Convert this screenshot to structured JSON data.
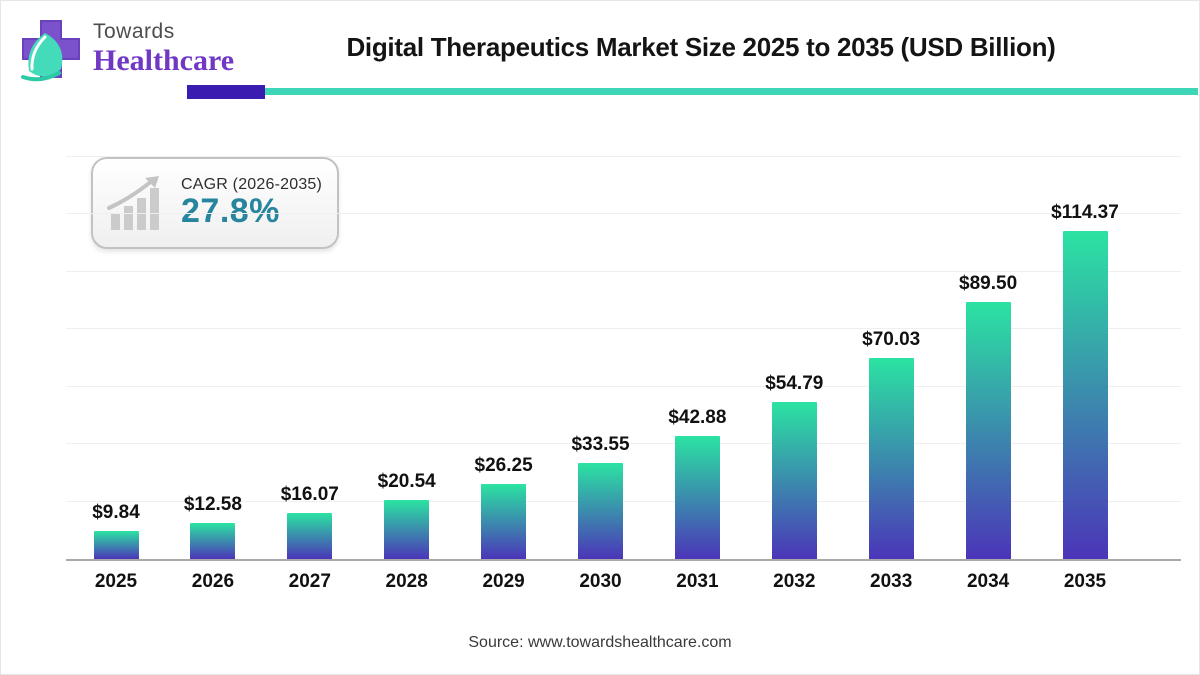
{
  "brand": {
    "line1": "Towards",
    "line2": "Healthcare"
  },
  "header": {
    "title": "Digital Therapeutics Market Size 2025 to 2035 (USD Billion)"
  },
  "cagr_badge": {
    "label": "CAGR (2026-2035)",
    "value": "27.8%"
  },
  "footer": {
    "source": "Source: www.towardshealthcare.com"
  },
  "colors": {
    "bar_gradient_top": "#2be3a2",
    "bar_gradient_bottom": "#4b35b8",
    "divider_indigo": "#3a1db0",
    "divider_teal": "#3fd6b8",
    "cagr_value_teal": "#27859e",
    "brand_purple": "#7038c4"
  },
  "chart_data": {
    "type": "bar",
    "title": "Digital Therapeutics Market Size 2025 to 2035 (USD Billion)",
    "categories": [
      "2025",
      "2026",
      "2027",
      "2028",
      "2029",
      "2030",
      "2031",
      "2032",
      "2033",
      "2034",
      "2035"
    ],
    "values": [
      9.84,
      12.58,
      16.07,
      20.54,
      26.25,
      33.55,
      42.88,
      54.79,
      70.03,
      89.5,
      114.37
    ],
    "value_labels": [
      "$9.84",
      "$12.58",
      "$16.07",
      "$20.54",
      "$26.25",
      "$33.55",
      "$42.88",
      "$54.79",
      "$70.03",
      "$89.50",
      "$114.37"
    ],
    "xlabel": "",
    "ylabel": "",
    "ylim": [
      0,
      140
    ],
    "gridline_step": 20,
    "grid": true,
    "legend": false,
    "bar_gradient": [
      "#2be3a2",
      "#4b35b8"
    ]
  }
}
